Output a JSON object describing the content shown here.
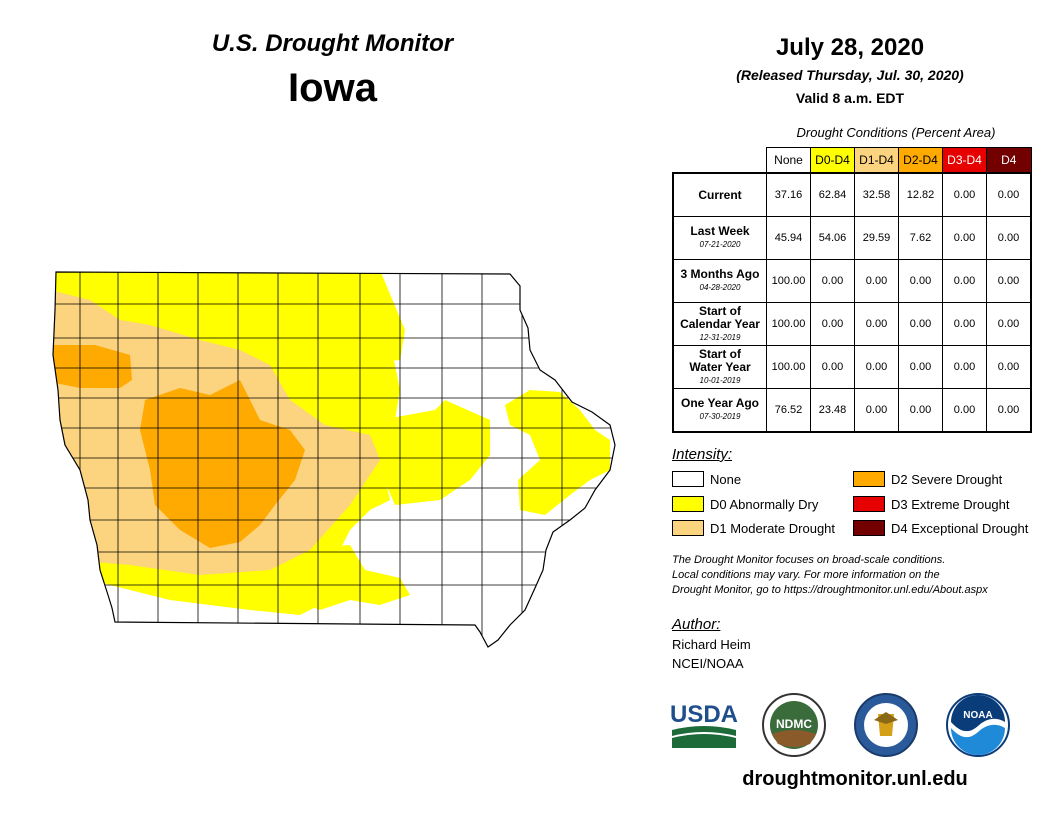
{
  "header": {
    "monitor_title": "U.S. Drought Monitor",
    "state": "Iowa",
    "date": "July 28, 2020",
    "released": "(Released Thursday, Jul. 30, 2020)",
    "valid": "Valid 8 a.m. EDT"
  },
  "table": {
    "caption": "Drought Conditions (Percent Area)",
    "columns": [
      "None",
      "D0-D4",
      "D1-D4",
      "D2-D4",
      "D3-D4",
      "D4"
    ],
    "rows": [
      {
        "label": "Current",
        "date": "",
        "values": [
          "37.16",
          "62.84",
          "32.58",
          "12.82",
          "0.00",
          "0.00"
        ]
      },
      {
        "label": "Last Week",
        "date": "07-21-2020",
        "values": [
          "45.94",
          "54.06",
          "29.59",
          "7.62",
          "0.00",
          "0.00"
        ]
      },
      {
        "label": "3 Months Ago",
        "date": "04-28-2020",
        "values": [
          "100.00",
          "0.00",
          "0.00",
          "0.00",
          "0.00",
          "0.00"
        ]
      },
      {
        "label_lines": [
          "Start of",
          "Calendar Year"
        ],
        "label": "Start of Calendar Year",
        "date": "12-31-2019",
        "values": [
          "100.00",
          "0.00",
          "0.00",
          "0.00",
          "0.00",
          "0.00"
        ]
      },
      {
        "label_lines": [
          "Start of",
          "Water Year"
        ],
        "label": "Start of Water Year",
        "date": "10-01-2019",
        "values": [
          "100.00",
          "0.00",
          "0.00",
          "0.00",
          "0.00",
          "0.00"
        ]
      },
      {
        "label": "One Year Ago",
        "date": "07-30-2019",
        "values": [
          "76.52",
          "23.48",
          "0.00",
          "0.00",
          "0.00",
          "0.00"
        ]
      }
    ]
  },
  "legend": {
    "title": "Intensity:",
    "items": [
      {
        "label": "None",
        "color": "#ffffff"
      },
      {
        "label": "D0 Abnormally Dry",
        "color": "#ffff00"
      },
      {
        "label": "D1 Moderate Drought",
        "color": "#fcd37f"
      },
      {
        "label": "D2 Severe Drought",
        "color": "#ffaa00"
      },
      {
        "label": "D3 Extreme Drought",
        "color": "#e60000"
      },
      {
        "label": "D4 Exceptional Drought",
        "color": "#730000"
      }
    ]
  },
  "disclaimer": {
    "line1": "The Drought Monitor focuses on broad-scale conditions.",
    "line2": "Local conditions may vary. For more information on the",
    "line3": "Drought Monitor, go to https://droughtmonitor.unl.edu/About.aspx"
  },
  "author": {
    "title": "Author:",
    "name": "Richard Heim",
    "org": "NCEI/NOAA"
  },
  "logos": {
    "usda": "USDA",
    "ndmc": "NDMC",
    "noaa": "NOAA"
  },
  "website": "droughtmonitor.unl.edu",
  "colors": {
    "none": "#ffffff",
    "d0": "#ffff00",
    "d1": "#fcd37f",
    "d2": "#ffaa00",
    "d3": "#e60000",
    "d4": "#730000"
  }
}
